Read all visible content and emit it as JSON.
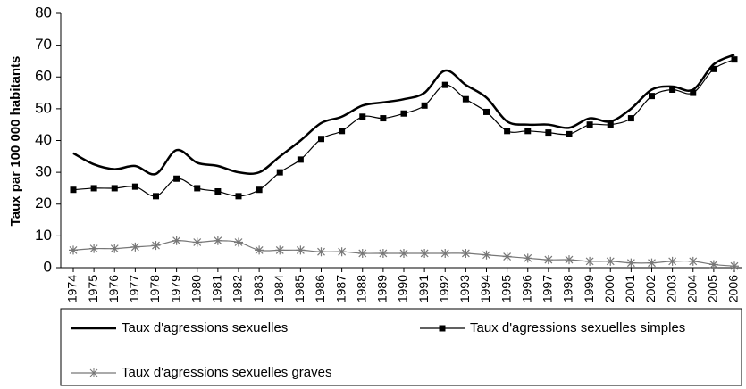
{
  "chart_data": {
    "type": "line",
    "y_label": "Taux par 100 000 habitants",
    "categories": [
      "1974",
      "1975",
      "1976",
      "1977",
      "1978",
      "1979",
      "1980",
      "1981",
      "1982",
      "1983",
      "1984",
      "1985",
      "1986",
      "1987",
      "1988",
      "1989",
      "1990",
      "1991",
      "1992",
      "1993",
      "1994",
      "1995",
      "1996",
      "1997",
      "1998",
      "1999",
      "2000",
      "2001",
      "2002",
      "2003",
      "2004",
      "2005",
      "2006"
    ],
    "series": [
      {
        "name": "Taux d'agressions sexuelles",
        "color": "#000000",
        "marker": "none",
        "values": [
          36,
          32.5,
          31,
          32,
          29.5,
          37,
          33,
          32,
          30,
          30,
          35,
          40,
          45.5,
          47.5,
          51,
          52,
          53,
          55,
          62,
          57.5,
          53.5,
          46,
          45,
          45,
          44,
          47,
          46,
          50,
          56,
          57,
          56,
          64,
          67
        ]
      },
      {
        "name": "Taux d'agressions sexuelles simples",
        "color": "#000000",
        "marker": "square",
        "values": [
          24.5,
          25,
          25,
          25.5,
          22.5,
          28,
          25,
          24,
          22.5,
          24.5,
          30,
          34,
          40.5,
          43,
          47.5,
          47,
          48.5,
          51,
          57.5,
          53,
          49,
          43,
          43,
          42.5,
          42,
          45,
          45,
          47,
          54,
          56,
          55,
          62.5,
          65.5
        ]
      },
      {
        "name": "Taux d'agressions sexuelles graves",
        "color": "#777777",
        "marker": "star",
        "values": [
          5.5,
          6,
          6,
          6.5,
          7,
          8.5,
          8,
          8.5,
          8,
          5.5,
          5.5,
          5.5,
          5,
          5,
          4.5,
          4.5,
          4.5,
          4.5,
          4.5,
          4.5,
          4,
          3.5,
          3,
          2.5,
          2.5,
          2,
          2,
          1.5,
          1.5,
          2,
          2,
          1,
          0.5
        ]
      }
    ],
    "ylim": [
      0,
      80
    ],
    "yticks": [
      0,
      10,
      20,
      30,
      40,
      50,
      60,
      70,
      80
    ],
    "grid": false,
    "legend": "bottom"
  }
}
